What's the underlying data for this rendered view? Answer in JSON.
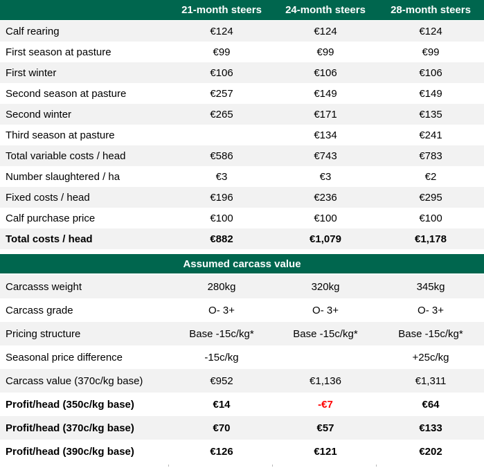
{
  "colors": {
    "header_green": "#00664E",
    "row_alt_gray": "#f2f2f2",
    "negative_red": "#ff0000",
    "header_text": "#ffffff"
  },
  "header": {
    "column_labels": [
      "21-month steers",
      "24-month steers",
      "28-month steers"
    ]
  },
  "costs_section": {
    "rows": [
      {
        "label": "Calf rearing",
        "values": [
          "€124",
          "€124",
          "€124"
        ],
        "bold": false
      },
      {
        "label": "First season at pasture",
        "values": [
          "€99",
          "€99",
          "€99"
        ],
        "bold": false
      },
      {
        "label": "First winter",
        "values": [
          "€106",
          "€106",
          "€106"
        ],
        "bold": false
      },
      {
        "label": "Second season at pasture",
        "values": [
          "€257",
          "€149",
          "€149"
        ],
        "bold": false
      },
      {
        "label": "Second winter",
        "values": [
          "€265",
          "€171",
          "€135"
        ],
        "bold": false
      },
      {
        "label": "Third season at pasture",
        "values": [
          "",
          "€134",
          "€241"
        ],
        "bold": false
      },
      {
        "label": "Total variable costs / head",
        "values": [
          "€586",
          "€743",
          "€783"
        ],
        "bold": false
      },
      {
        "label": "Number slaughtered / ha",
        "values": [
          "€3",
          "€3",
          "€2"
        ],
        "bold": false
      },
      {
        "label": "Fixed costs / head",
        "values": [
          "€196",
          "€236",
          "€295"
        ],
        "bold": false
      },
      {
        "label": "Calf purchase price",
        "values": [
          "€100",
          "€100",
          "€100"
        ],
        "bold": false
      },
      {
        "label": "Total costs / head",
        "values": [
          "€882",
          "€1,079",
          "€1,178"
        ],
        "bold": true
      }
    ]
  },
  "carcass_section": {
    "title": "Assumed carcass value",
    "rows": [
      {
        "label": "Carcasss weight",
        "values": [
          "280kg",
          "320kg",
          "345kg"
        ],
        "bold": false
      },
      {
        "label": "Carcass grade",
        "values": [
          "O- 3+",
          "O- 3+",
          "O- 3+"
        ],
        "bold": false
      },
      {
        "label": "Pricing structure",
        "values": [
          "Base -15c/kg*",
          "Base -15c/kg*",
          "Base -15c/kg*"
        ],
        "bold": false
      },
      {
        "label": "Seasonal price difference",
        "values": [
          "-15c/kg",
          "",
          "+25c/kg"
        ],
        "bold": false
      },
      {
        "label": "Carcass value (370c/kg base)",
        "values": [
          "€952",
          "€1,136",
          "€1,311"
        ],
        "bold": false
      },
      {
        "label": "Profit/head (350c/kg base)",
        "values": [
          "€14",
          "-€7",
          "€64"
        ],
        "bold": true,
        "red": [
          false,
          true,
          false
        ]
      },
      {
        "label": "Profit/head (370c/kg base)",
        "values": [
          "€70",
          "€57",
          "€133"
        ],
        "bold": true
      },
      {
        "label": "Profit/head (390c/kg base)",
        "values": [
          "€126",
          "€121",
          "€202"
        ],
        "bold": true
      }
    ]
  }
}
